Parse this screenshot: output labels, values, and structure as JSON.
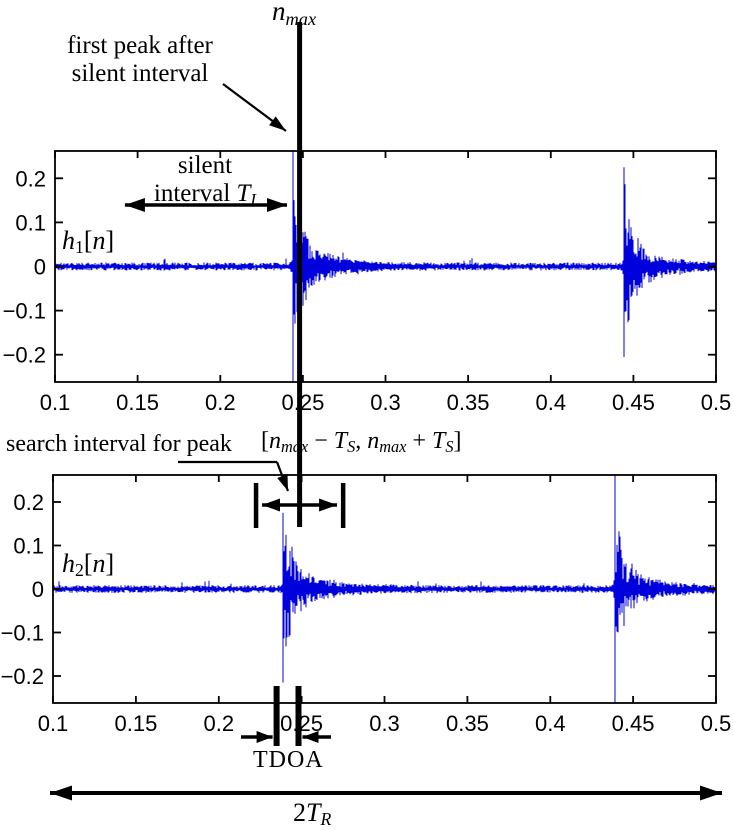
{
  "figure": {
    "background": "#ffffff",
    "annotations": {
      "n_max": [
        {
          "t": "n",
          "i": 1
        },
        {
          "t": "max",
          "i": 1,
          "sub": 1
        }
      ],
      "first_peak_line1": "first peak after",
      "first_peak_line2": "silent interval",
      "silent_line1": "silent",
      "silent_line2": [
        {
          "t": "interval "
        },
        {
          "t": "T",
          "i": 1
        },
        {
          "t": "I",
          "i": 1,
          "sub": 1
        }
      ],
      "search_label": "search interval for peak",
      "search_expr": [
        {
          "t": "["
        },
        {
          "t": "n",
          "i": 1
        },
        {
          "t": "max",
          "i": 1,
          "sub": 1
        },
        {
          "t": " − "
        },
        {
          "t": "T",
          "i": 1
        },
        {
          "t": "S",
          "i": 1,
          "sub": 1
        },
        {
          "t": ", "
        },
        {
          "t": "n",
          "i": 1
        },
        {
          "t": "max",
          "i": 1,
          "sub": 1
        },
        {
          "t": " + "
        },
        {
          "t": "T",
          "i": 1
        },
        {
          "t": "S",
          "i": 1,
          "sub": 1
        },
        {
          "t": "]"
        }
      ],
      "tdoa": "TDOA",
      "total_span": [
        {
          "t": "2"
        },
        {
          "t": "T",
          "i": 1
        },
        {
          "t": "R",
          "i": 1,
          "sub": 1
        }
      ]
    },
    "markers": {
      "n_max_x": 0.248,
      "silent_interval_x": [
        0.1423,
        0.2404
      ],
      "search_interval_x": [
        0.2225,
        0.275
      ],
      "tdoa_marks_x": [
        0.2349,
        0.2481
      ]
    },
    "annotation_color": "#000000"
  },
  "chart_data": [
    {
      "type": "line",
      "name": "h1",
      "label_parts": [
        {
          "t": "h",
          "i": 1
        },
        {
          "t": "1",
          "sub": 1
        },
        {
          "t": "["
        },
        {
          "t": "n",
          "i": 1
        },
        {
          "t": "]"
        }
      ],
      "xlim": [
        0.1,
        0.5
      ],
      "ylim": [
        -0.262,
        0.262
      ],
      "x_tick_values": [
        0.1,
        0.15,
        0.2,
        0.25,
        0.3,
        0.35,
        0.4,
        0.45,
        0.5
      ],
      "x_tick_labels": [
        "0.1",
        "0.15",
        "0.2",
        "0.25",
        "0.3",
        "0.35",
        "0.4",
        "0.45",
        "0.5"
      ],
      "y_tick_values": [
        -0.2,
        -0.1,
        0,
        0.1,
        0.2
      ],
      "y_tick_labels": [
        "−0.2",
        "−0.1",
        "0",
        "0.1",
        "0.2"
      ],
      "grid": false,
      "line_color": "#0000dd",
      "axis_color": "#000000",
      "noise_floor": 0.0062,
      "bursts": [
        {
          "t0": 0.244,
          "peak_up": 0.262,
          "peak_dn": -0.262,
          "fast": 0.14,
          "fast_tau": 0.0045,
          "slow": 0.055,
          "slow_tau": 0.02
        },
        {
          "t0": 0.4443,
          "peak_up": 0.225,
          "peak_dn": -0.205,
          "fast": 0.13,
          "fast_tau": 0.0045,
          "slow": 0.05,
          "slow_tau": 0.02
        }
      ]
    },
    {
      "type": "line",
      "name": "h2",
      "label_parts": [
        {
          "t": "h",
          "i": 1
        },
        {
          "t": "2",
          "sub": 1
        },
        {
          "t": "["
        },
        {
          "t": "n",
          "i": 1
        },
        {
          "t": "]"
        }
      ],
      "xlim": [
        0.1,
        0.5
      ],
      "ylim": [
        -0.262,
        0.262
      ],
      "x_tick_values": [
        0.1,
        0.15,
        0.2,
        0.25,
        0.3,
        0.35,
        0.4,
        0.45,
        0.5
      ],
      "x_tick_labels": [
        "0.1",
        "0.15",
        "0.2",
        "0.25",
        "0.3",
        "0.35",
        "0.4",
        "0.45",
        "0.5"
      ],
      "y_tick_values": [
        -0.2,
        -0.1,
        0,
        0.1,
        0.2
      ],
      "y_tick_labels": [
        "−0.2",
        "−0.1",
        "0",
        "0.1",
        "0.2"
      ],
      "grid": false,
      "line_color": "#0000dd",
      "axis_color": "#000000",
      "noise_floor": 0.0062,
      "bursts": [
        {
          "t0": 0.2388,
          "peak_up": 0.175,
          "peak_dn": -0.215,
          "fast": 0.12,
          "fast_tau": 0.0045,
          "slow": 0.055,
          "slow_tau": 0.02
        },
        {
          "t0": 0.439,
          "peak_up": 0.262,
          "peak_dn": -0.262,
          "fast": 0.13,
          "fast_tau": 0.0045,
          "slow": 0.05,
          "slow_tau": 0.02
        }
      ]
    }
  ]
}
